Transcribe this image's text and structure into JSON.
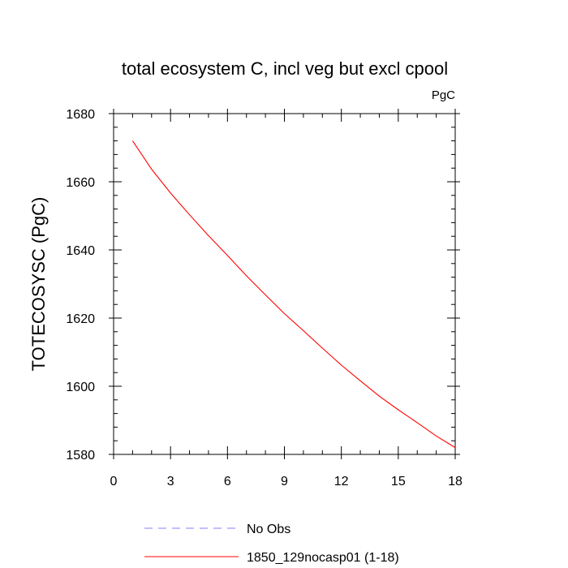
{
  "chart_data": {
    "type": "line",
    "title": "total ecosystem C, incl veg but excl cpool",
    "units_label": "PgC",
    "xlabel": "",
    "ylabel": "TOTECOSYSC  (PgC)",
    "xlim": [
      0,
      18
    ],
    "ylim": [
      1580,
      1680
    ],
    "x_ticks": [
      0,
      3,
      6,
      9,
      12,
      15,
      18
    ],
    "y_ticks": [
      1580,
      1600,
      1620,
      1640,
      1660,
      1680
    ],
    "x_minor_step": 1,
    "y_minor_step": 4,
    "grid": false,
    "legend_position": "bottom",
    "series": [
      {
        "name": "1850_129nocasp01 (1-18)",
        "color": "#ff0000",
        "style": "solid",
        "x": [
          1,
          2,
          3,
          4,
          5,
          6,
          7,
          8,
          9,
          10,
          11,
          12,
          13,
          14,
          15,
          16,
          17,
          18
        ],
        "y": [
          1672,
          1663.7,
          1656.7,
          1650.3,
          1644.2,
          1638.4,
          1632.4,
          1626.8,
          1621.3,
          1616.3,
          1611.2,
          1606.2,
          1601.6,
          1597.1,
          1593.1,
          1589.3,
          1585.4,
          1582
        ]
      }
    ],
    "legend": [
      {
        "label": "No Obs",
        "color": "#8080ff",
        "style": "dashed"
      },
      {
        "label": "1850_129nocasp01 (1-18)",
        "color": "#ff0000",
        "style": "solid"
      }
    ]
  }
}
